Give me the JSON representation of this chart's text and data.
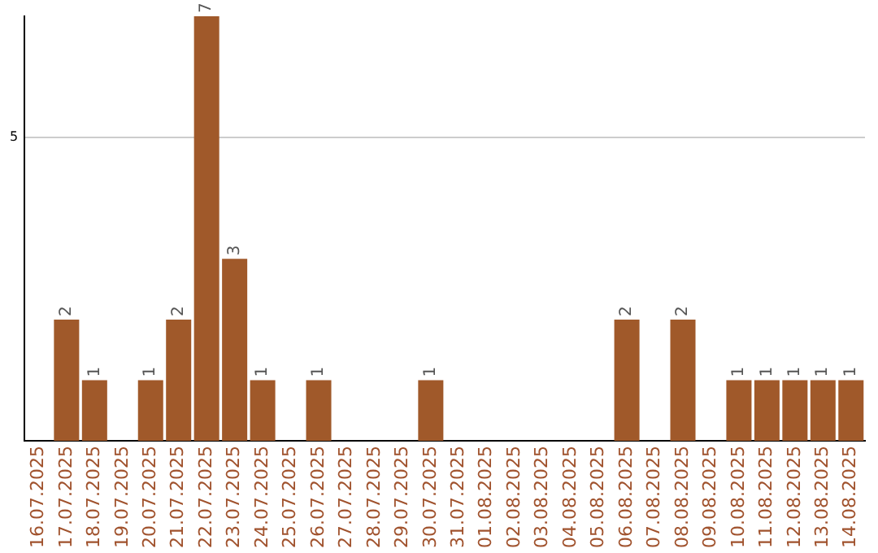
{
  "chart_data": {
    "type": "bar",
    "categories": [
      "16.07.2025",
      "17.07.2025",
      "18.07.2025",
      "19.07.2025",
      "20.07.2025",
      "21.07.2025",
      "22.07.2025",
      "23.07.2025",
      "24.07.2025",
      "25.07.2025",
      "26.07.2025",
      "27.07.2025",
      "28.07.2025",
      "29.07.2025",
      "30.07.2025",
      "31.07.2025",
      "01.08.2025",
      "02.08.2025",
      "03.08.2025",
      "04.08.2025",
      "05.08.2025",
      "06.08.2025",
      "07.08.2025",
      "08.08.2025",
      "09.08.2025",
      "10.08.2025",
      "11.08.2025",
      "12.08.2025",
      "13.08.2025",
      "14.08.2025"
    ],
    "values": [
      0,
      2,
      1,
      0,
      1,
      2,
      7,
      3,
      1,
      0,
      1,
      0,
      0,
      0,
      1,
      0,
      0,
      0,
      0,
      0,
      0,
      2,
      0,
      2,
      0,
      1,
      1,
      1,
      1,
      1
    ],
    "value_labels": [
      null,
      "2",
      "1",
      null,
      "1",
      "2",
      "7",
      "3",
      "1",
      null,
      "1",
      null,
      null,
      null,
      "1",
      null,
      null,
      null,
      null,
      null,
      null,
      "2",
      null,
      "2",
      null,
      "1",
      "1",
      "1",
      "1",
      "1"
    ],
    "color": "#a0592a",
    "ylim": [
      0,
      7
    ],
    "yticks": [
      5
    ],
    "grid": "y",
    "legend": false
  }
}
